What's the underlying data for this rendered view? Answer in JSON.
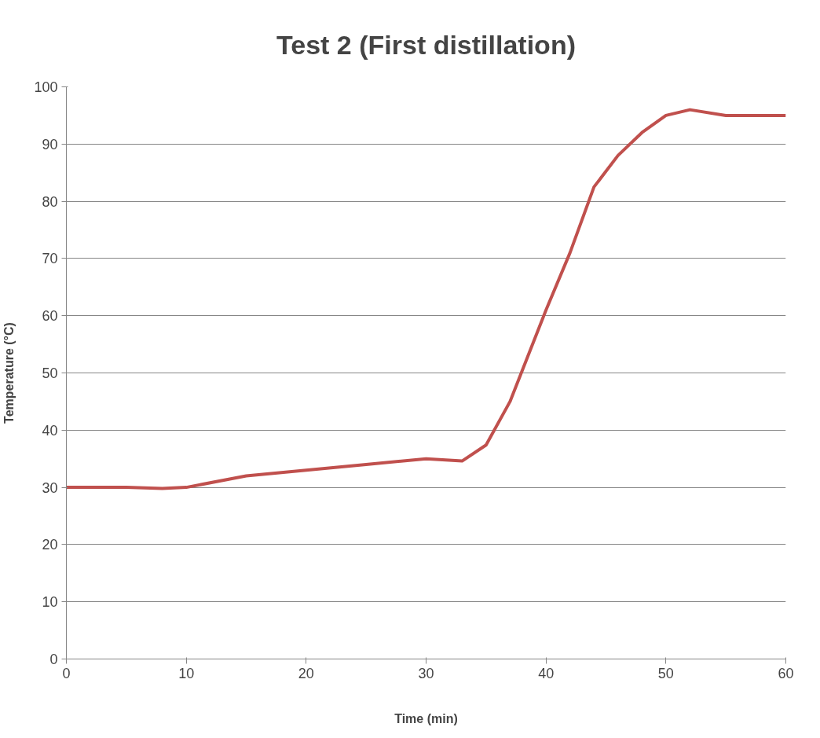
{
  "chart_data": {
    "type": "line",
    "title": "Test 2 (First distillation)",
    "xlabel": "Time (min)",
    "ylabel": "Temperature (°C)",
    "x": [
      0,
      5,
      8,
      10,
      15,
      20,
      25,
      30,
      33,
      35,
      37,
      40,
      42,
      44,
      46,
      48,
      50,
      52,
      55,
      60
    ],
    "series": [
      {
        "color": "#c0504d",
        "values": [
          30,
          30,
          29.8,
          30,
          32,
          33,
          34,
          35,
          34.6,
          37.4,
          45,
          61,
          71,
          82.5,
          88,
          92,
          95,
          96,
          95,
          95
        ]
      }
    ],
    "xlim": [
      0,
      60
    ],
    "xticks": [
      0,
      10,
      20,
      30,
      40,
      50,
      60
    ],
    "ylim": [
      0,
      100
    ],
    "yticks": [
      0,
      10,
      20,
      30,
      40,
      50,
      60,
      70,
      80,
      90,
      100
    ],
    "grid": "y",
    "marker": "none",
    "line_style": "solid"
  }
}
